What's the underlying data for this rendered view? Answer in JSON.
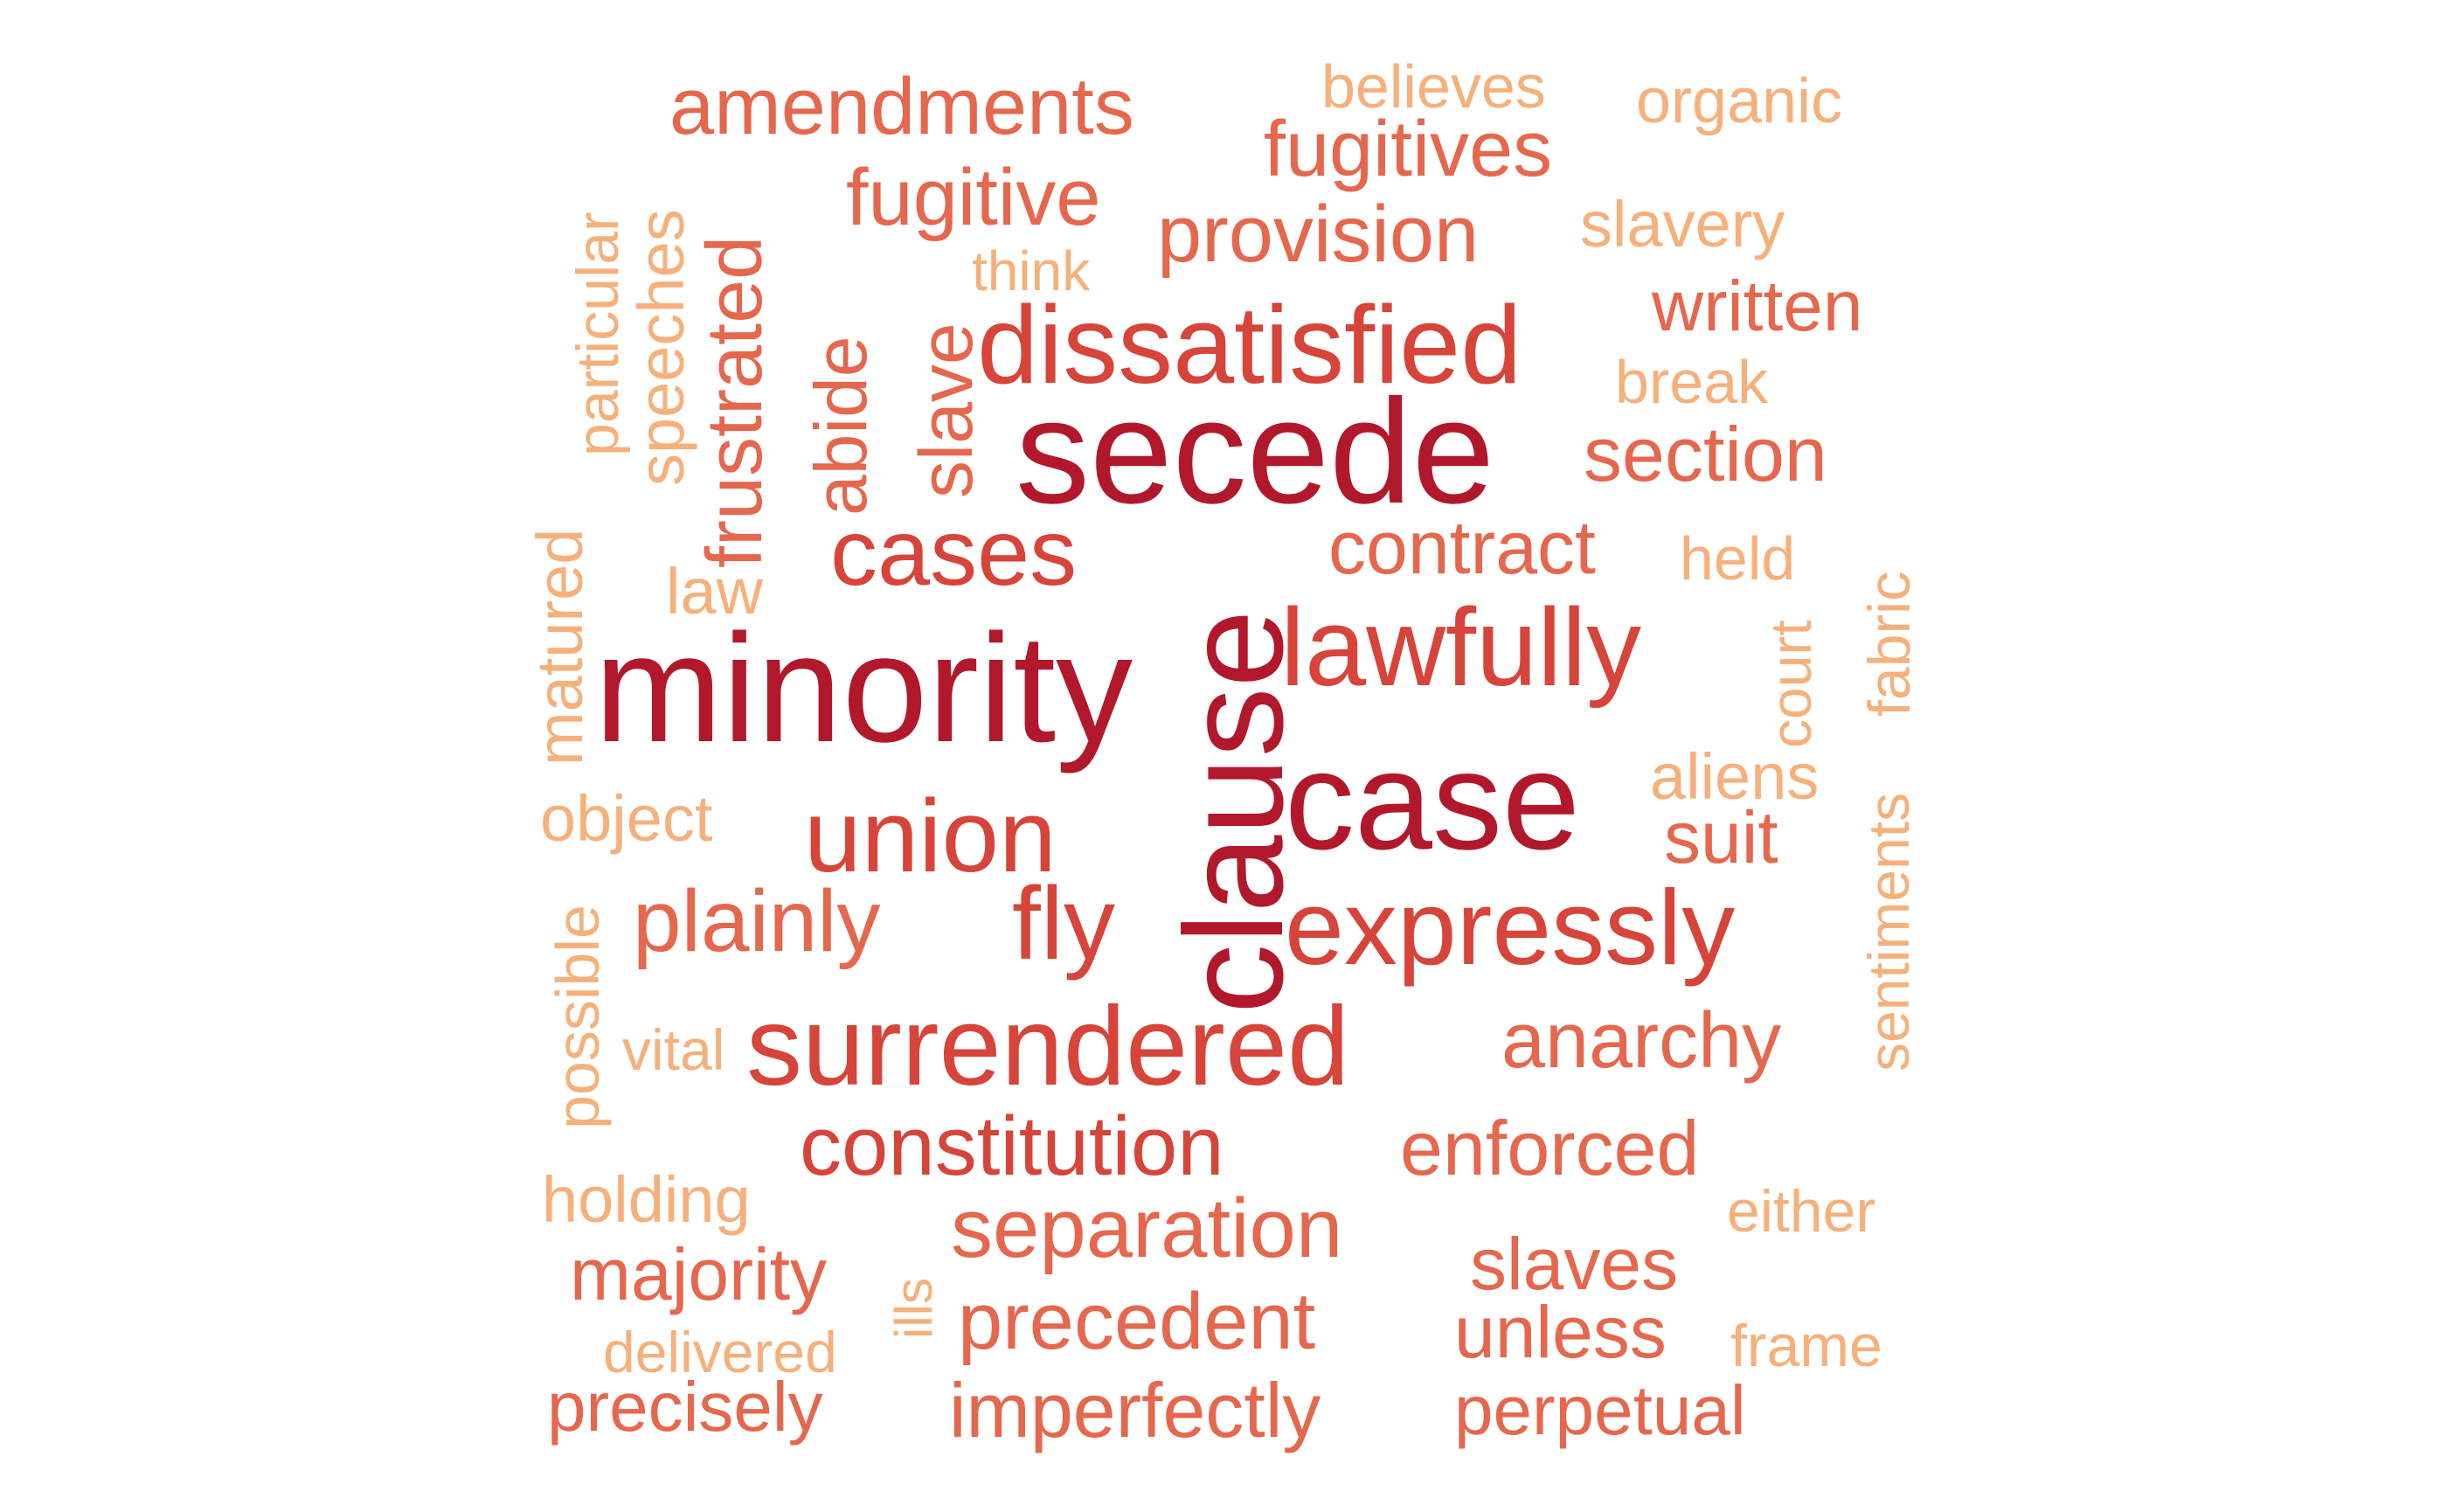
{
  "palette": {
    "level5": "#b2182b",
    "level4": "#d6443a",
    "level3": "#e5674d",
    "level2": "#f08a62",
    "level1": "#f6b07b",
    "level0": "#f9cf95"
  },
  "words": [
    {
      "text": "minority",
      "level": 5
    },
    {
      "text": "secede",
      "level": 5
    },
    {
      "text": "clause",
      "level": 5
    },
    {
      "text": "case",
      "level": 5
    },
    {
      "text": "dissatisfied",
      "level": 4
    },
    {
      "text": "lawfully",
      "level": 4
    },
    {
      "text": "surrendered",
      "level": 4
    },
    {
      "text": "expressly",
      "level": 4
    },
    {
      "text": "cases",
      "level": 4
    },
    {
      "text": "union",
      "level": 4
    },
    {
      "text": "fly",
      "level": 4
    },
    {
      "text": "constitution",
      "level": 4
    },
    {
      "text": "amendments",
      "level": 3
    },
    {
      "text": "fugitives",
      "level": 3
    },
    {
      "text": "fugitive",
      "level": 3
    },
    {
      "text": "provision",
      "level": 3
    },
    {
      "text": "written",
      "level": 3
    },
    {
      "text": "section",
      "level": 3
    },
    {
      "text": "contract",
      "level": 3
    },
    {
      "text": "plainly",
      "level": 3
    },
    {
      "text": "anarchy",
      "level": 3
    },
    {
      "text": "enforced",
      "level": 3
    },
    {
      "text": "separation",
      "level": 3
    },
    {
      "text": "majority",
      "level": 3
    },
    {
      "text": "slaves",
      "level": 3
    },
    {
      "text": "precedent",
      "level": 3
    },
    {
      "text": "unless",
      "level": 3
    },
    {
      "text": "precisely",
      "level": 3
    },
    {
      "text": "imperfectly",
      "level": 3
    },
    {
      "text": "perpetual",
      "level": 3
    },
    {
      "text": "suit",
      "level": 3
    },
    {
      "text": "frustrated",
      "level": 3
    },
    {
      "text": "abide",
      "level": 3
    },
    {
      "text": "slave",
      "level": 3
    },
    {
      "text": "believes",
      "level": 1
    },
    {
      "text": "organic",
      "level": 1
    },
    {
      "text": "slavery",
      "level": 1
    },
    {
      "text": "think",
      "level": 1
    },
    {
      "text": "break",
      "level": 1
    },
    {
      "text": "held",
      "level": 1
    },
    {
      "text": "law",
      "level": 1
    },
    {
      "text": "aliens",
      "level": 1
    },
    {
      "text": "object",
      "level": 1
    },
    {
      "text": "vital",
      "level": 1
    },
    {
      "text": "holding",
      "level": 1
    },
    {
      "text": "either",
      "level": 1
    },
    {
      "text": "delivered",
      "level": 1
    },
    {
      "text": "frame",
      "level": 1
    },
    {
      "text": "ills",
      "level": 1
    },
    {
      "text": "particular",
      "level": 1
    },
    {
      "text": "speeches",
      "level": 1
    },
    {
      "text": "matured",
      "level": 1
    },
    {
      "text": "possible",
      "level": 1
    },
    {
      "text": "court",
      "level": 1
    },
    {
      "text": "sentiments",
      "level": 1
    },
    {
      "text": "fabric",
      "level": 1
    }
  ]
}
